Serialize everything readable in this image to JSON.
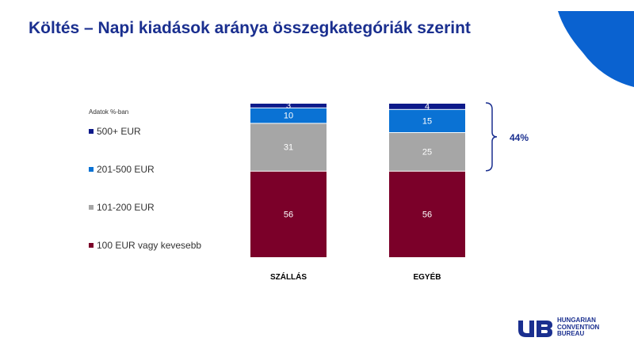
{
  "title": "Költés – Napi kiadások aránya összegkategóriák szerint",
  "note": "Adatok %-ban",
  "logo": {
    "lines": [
      "HUNGARIAN",
      "CONVENTION",
      "BUREAU"
    ],
    "mark": "hcb-logo-icon"
  },
  "colors": {
    "title": "#1a2f8f",
    "accent": "#0a62d0",
    "bracket": "#1a2f8f"
  },
  "chart_data": {
    "type": "bar",
    "stacked": true,
    "categories": [
      "SZÁLLÁS",
      "EGYÉB"
    ],
    "series": [
      {
        "name": "100 EUR vagy kevesebb",
        "values": [
          56,
          56
        ],
        "color": "#7b0029",
        "label_color": "#ffffff"
      },
      {
        "name": "101-200 EUR",
        "values": [
          31,
          25
        ],
        "color": "#a6a6a6",
        "label_color": "#ffffff"
      },
      {
        "name": "201-500 EUR",
        "values": [
          10,
          15
        ],
        "color": "#0a72d4",
        "label_color": "#ffffff"
      },
      {
        "name": "500+ EUR",
        "values": [
          3,
          4
        ],
        "color": "#0d1a8a",
        "label_color": "#ffffff"
      }
    ],
    "legend_order": [
      3,
      2,
      1,
      0
    ],
    "ylim": [
      0,
      100
    ],
    "grid": false,
    "legend_position": "left",
    "annotations": [
      {
        "text": "44%",
        "category": "EGYÉB",
        "series": [
          "201-500 EUR",
          "500+ EUR",
          "101-200 EUR"
        ]
      }
    ]
  }
}
